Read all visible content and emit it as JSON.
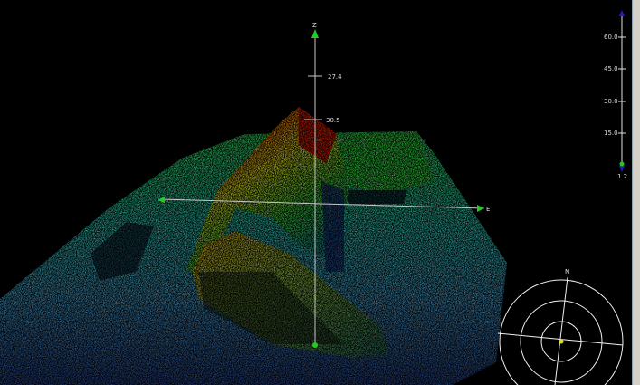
{
  "axes": {
    "z_label": "Z",
    "e_label": "E",
    "z_tick_upper": "27.4",
    "z_tick_lower": "30.5"
  },
  "depth_scale": {
    "ticks": [
      "60.0",
      "45.0",
      "30.0",
      "15.0"
    ],
    "min_value": "1.2",
    "marker_color": "#2020c0",
    "current_color": "#22cc22"
  },
  "compass": {
    "north_label": "N",
    "center_color": "#e0e020"
  },
  "colormap": [
    "#1a3a8a",
    "#3a9ad0",
    "#30e0d0",
    "#40f040",
    "#f0f020",
    "#ff8000",
    "#ff1000"
  ]
}
